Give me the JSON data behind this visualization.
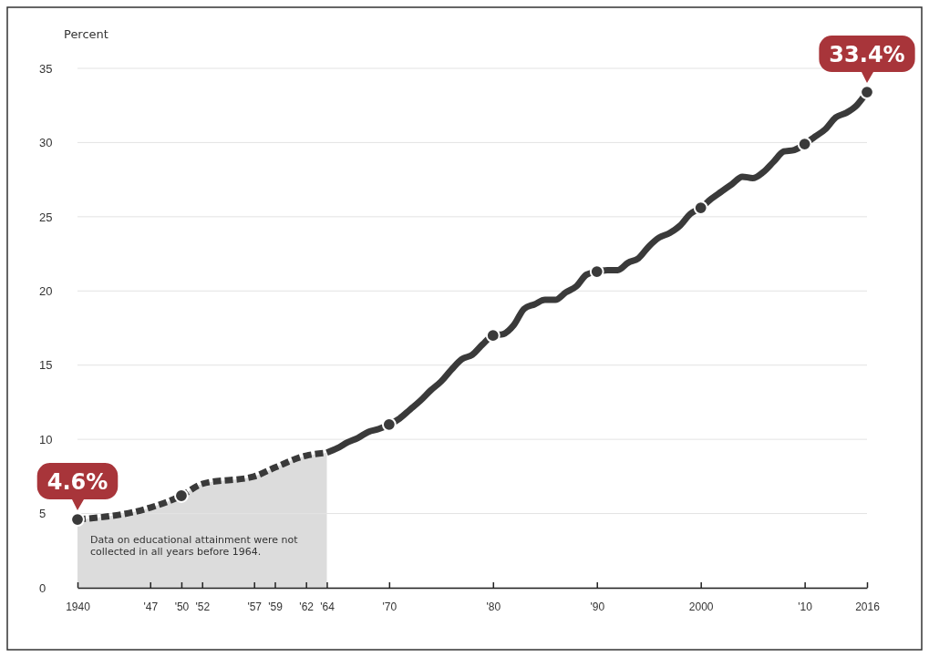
{
  "chart_data": {
    "type": "line",
    "ylabel": "Percent",
    "xlim": [
      1940,
      2016
    ],
    "ylim": [
      0,
      35
    ],
    "xticks": [
      1940,
      {
        "value": 1947,
        "label": "'47"
      },
      {
        "value": 1950,
        "label": "'50"
      },
      {
        "value": 1952,
        "label": "'52"
      },
      {
        "value": 1957,
        "label": "'57"
      },
      {
        "value": 1959,
        "label": "'59"
      },
      {
        "value": 1962,
        "label": "'62"
      },
      {
        "value": 1964,
        "label": "'64"
      },
      {
        "value": 1970,
        "label": "'70"
      },
      {
        "value": 1980,
        "label": "'80"
      },
      {
        "value": 1990,
        "label": "'90"
      },
      2000,
      {
        "value": 2010,
        "label": "'10"
      },
      2016
    ],
    "yticks": [
      0,
      5,
      10,
      15,
      20,
      25,
      30,
      35
    ],
    "grid": "y",
    "series": [
      {
        "color": "#3a3a3a",
        "line_style": "dashed",
        "marker": "none",
        "x": [
          1940,
          1947,
          1950,
          1952,
          1957,
          1959,
          1962,
          1964
        ],
        "values": [
          4.6,
          5.4,
          6.2,
          7.0,
          7.5,
          8.1,
          8.9,
          9.1
        ]
      },
      {
        "color": "#3a3a3a",
        "line_style": "solid",
        "marker": "none",
        "x": [
          1964,
          1965,
          1966,
          1967,
          1968,
          1969,
          1970,
          1971,
          1972,
          1973,
          1974,
          1975,
          1976,
          1977,
          1978,
          1979,
          1980,
          1981,
          1982,
          1983,
          1984,
          1985,
          1986,
          1987,
          1988,
          1989,
          1990,
          1991,
          1992,
          1993,
          1994,
          1995,
          1996,
          1997,
          1998,
          1999,
          2000,
          2001,
          2002,
          2003,
          2004,
          2005,
          2006,
          2007,
          2008,
          2009,
          2010,
          2011,
          2012,
          2013,
          2014,
          2015,
          2016
        ],
        "values": [
          9.1,
          9.4,
          9.8,
          10.1,
          10.5,
          10.7,
          11.0,
          11.4,
          12.0,
          12.6,
          13.3,
          13.9,
          14.7,
          15.4,
          15.7,
          16.4,
          17.0,
          17.1,
          17.7,
          18.8,
          19.1,
          19.4,
          19.4,
          19.9,
          20.3,
          21.1,
          21.3,
          21.4,
          21.4,
          21.9,
          22.2,
          23.0,
          23.6,
          23.9,
          24.4,
          25.2,
          25.6,
          26.2,
          26.7,
          27.2,
          27.7,
          27.6,
          28.0,
          28.7,
          29.4,
          29.5,
          29.9,
          30.4,
          30.9,
          31.7,
          32.0,
          32.5,
          33.4
        ]
      },
      {
        "type": "scatter",
        "color": "#3a3a3a",
        "marker": "circle",
        "x": [
          1940,
          1950,
          1970,
          1980,
          1990,
          2000,
          2010,
          2016
        ],
        "values": [
          4.6,
          6.2,
          11.0,
          17.0,
          21.3,
          25.6,
          29.9,
          33.4
        ]
      }
    ],
    "bands": [
      {
        "axis": "x",
        "from": 1940,
        "to": 1964,
        "color": "#dcdcdc",
        "label": "Data on educational attainment were not collected in all years before 1964."
      }
    ],
    "annotations": [
      {
        "text": "4.6%",
        "x": 1940,
        "y": 4.6
      },
      {
        "text": "33.4%",
        "x": 2016,
        "y": 33.4
      }
    ]
  }
}
